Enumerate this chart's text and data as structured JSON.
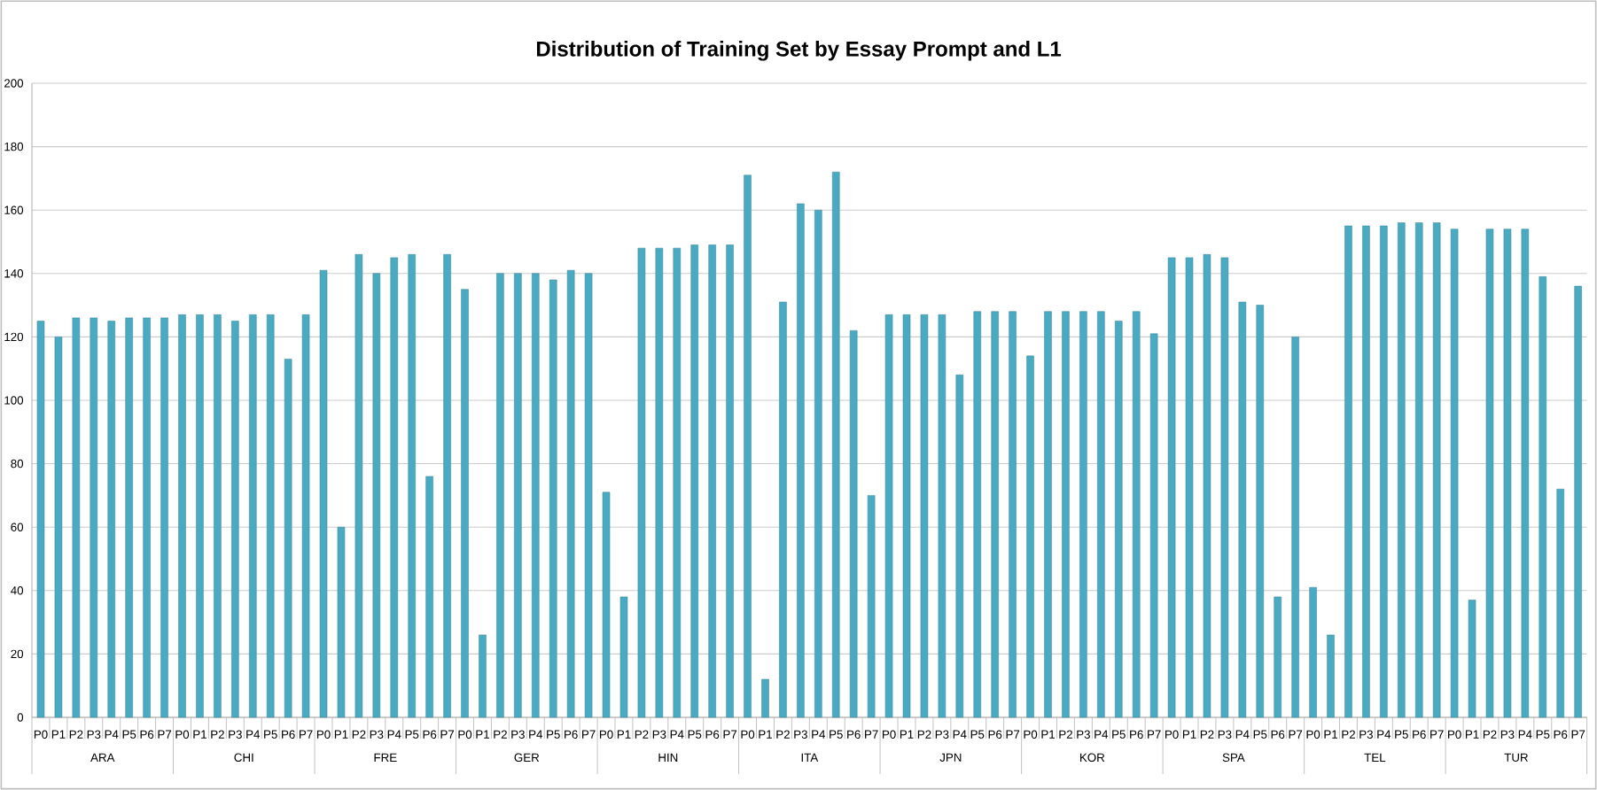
{
  "chart_data": {
    "type": "bar",
    "title": "Distribution of Training Set by Essay Prompt and L1",
    "categories": [
      "P0",
      "P1",
      "P2",
      "P3",
      "P4",
      "P5",
      "P6",
      "P7",
      "P0",
      "P1",
      "P2",
      "P3",
      "P4",
      "P5",
      "P6",
      "P7",
      "P0",
      "P1",
      "P2",
      "P3",
      "P4",
      "P5",
      "P6",
      "P7",
      "P0",
      "P1",
      "P2",
      "P3",
      "P4",
      "P5",
      "P6",
      "P7",
      "P0",
      "P1",
      "P2",
      "P3",
      "P4",
      "P5",
      "P6",
      "P7",
      "P0",
      "P1",
      "P2",
      "P3",
      "P4",
      "P5",
      "P6",
      "P7",
      "P0",
      "P1",
      "P2",
      "P3",
      "P4",
      "P5",
      "P6",
      "P7",
      "P0",
      "P1",
      "P2",
      "P3",
      "P4",
      "P5",
      "P6",
      "P7",
      "P0",
      "P1",
      "P2",
      "P3",
      "P4",
      "P5",
      "P6",
      "P7",
      "P0",
      "P1",
      "P2",
      "P3",
      "P4",
      "P5",
      "P6",
      "P7",
      "P0",
      "P1",
      "P2",
      "P3",
      "P4",
      "P5",
      "P6",
      "P7"
    ],
    "values": [
      125,
      120,
      126,
      126,
      125,
      126,
      126,
      126,
      127,
      127,
      127,
      125,
      127,
      127,
      113,
      127,
      141,
      60,
      146,
      140,
      145,
      146,
      76,
      146,
      135,
      26,
      140,
      140,
      140,
      138,
      141,
      140,
      71,
      38,
      148,
      148,
      148,
      149,
      149,
      149,
      171,
      12,
      131,
      162,
      160,
      172,
      122,
      70,
      127,
      127,
      127,
      127,
      108,
      128,
      128,
      128,
      114,
      128,
      128,
      128,
      128,
      125,
      128,
      121,
      145,
      145,
      146,
      145,
      131,
      130,
      38,
      120,
      41,
      26,
      155,
      155,
      155,
      156,
      156,
      156,
      154,
      37,
      154,
      154,
      154,
      139,
      72,
      136
    ],
    "color": "#4aaac2",
    "annotations": [
      "ARA",
      "CHI",
      "FRE",
      "GER",
      "HIN",
      "ITA",
      "JPN",
      "KOR",
      "SPA",
      "TEL",
      "TUR"
    ],
    "ylim": [
      0,
      200
    ],
    "yticks": [
      0,
      20,
      40,
      60,
      80,
      100,
      120,
      140,
      160,
      180,
      200
    ],
    "grid": "y"
  }
}
